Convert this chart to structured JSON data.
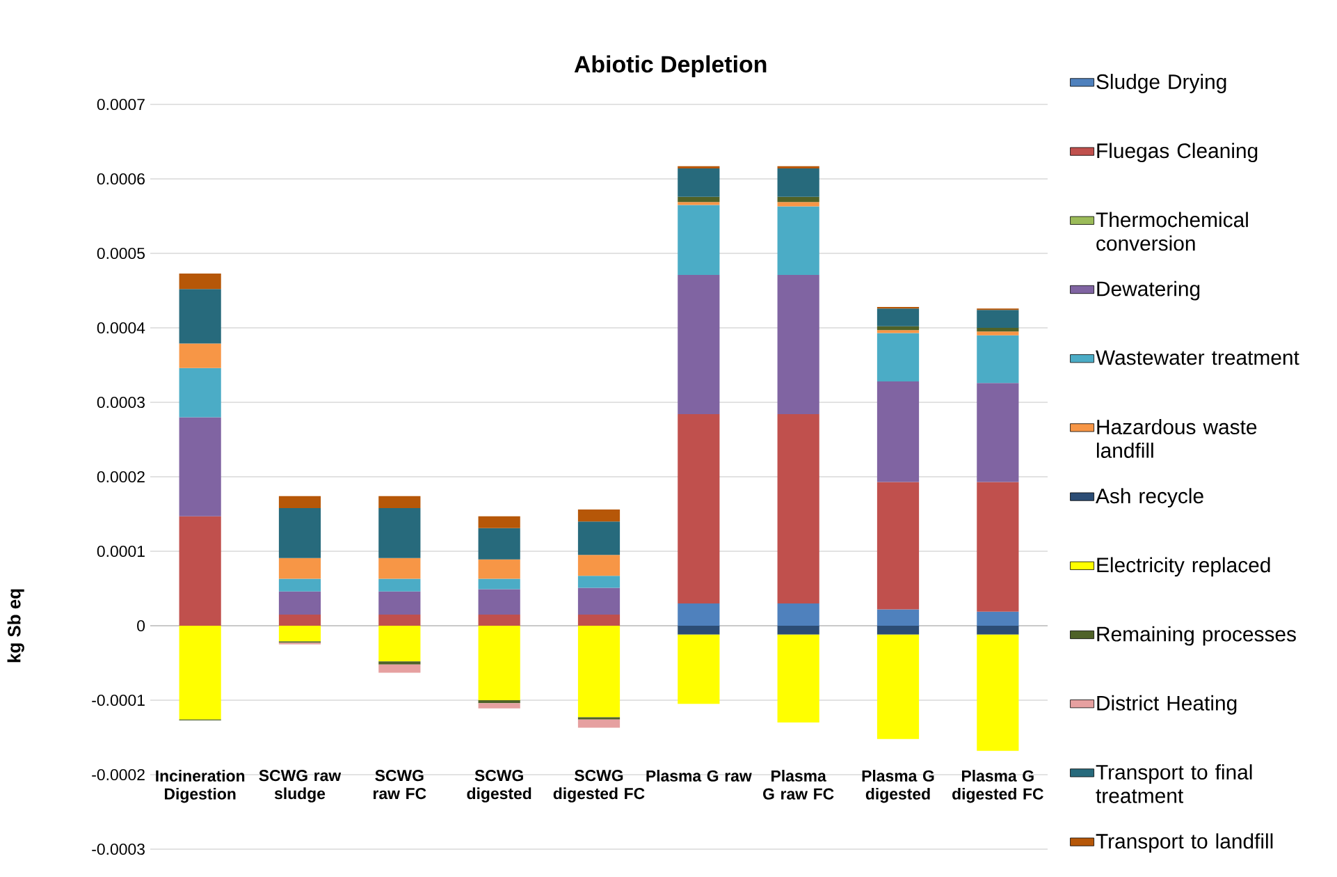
{
  "chart_data": {
    "type": "bar",
    "title": "Abiotic Depletion",
    "ylabel": "kg Sb eq",
    "stacked": true,
    "grid": "y",
    "legend": "right",
    "categories": [
      "Incineration Digestion",
      "SCWG raw sludge",
      "SCWG raw FC",
      "SCWG digested",
      "SCWG digested FC",
      "Plasma G raw",
      "Plasma G raw FC",
      "Plasma G digested",
      "Plasma G digested FC"
    ],
    "ylim": [
      -0.0003,
      0.0007
    ],
    "yticks": [
      -0.0003,
      -0.0002,
      -0.0001,
      0,
      0.0001,
      0.0002,
      0.0003,
      0.0004,
      0.0005,
      0.0006,
      0.0007
    ],
    "series": [
      {
        "name": "Sludge Drying",
        "color": "#4f81bd",
        "values": [
          0,
          0,
          0,
          0,
          0,
          3e-05,
          3e-05,
          2.2e-05,
          1.9e-05
        ]
      },
      {
        "name": "Fluegas Cleaning",
        "color": "#c0504d",
        "values": [
          0.000147,
          1.5e-05,
          1.5e-05,
          1.5e-05,
          1.5e-05,
          0.000254,
          0.000254,
          0.000171,
          0.000174
        ]
      },
      {
        "name": "Thermochemical conversion",
        "color": "#9bbb59",
        "values": [
          0,
          0,
          0,
          0,
          0,
          0,
          0,
          0,
          0
        ]
      },
      {
        "name": "Dewatering",
        "color": "#8064a2",
        "values": [
          0.000133,
          3.1e-05,
          3.1e-05,
          3.4e-05,
          3.6e-05,
          0.000187,
          0.000187,
          0.000135,
          0.000133
        ]
      },
      {
        "name": "Wastewater treatment",
        "color": "#4bacc6",
        "values": [
          6.6e-05,
          1.7e-05,
          1.7e-05,
          1.4e-05,
          1.6e-05,
          9.4e-05,
          9.2e-05,
          6.5e-05,
          6.4e-05
        ]
      },
      {
        "name": "Hazardous waste landfill",
        "color": "#f79646",
        "values": [
          3.3e-05,
          2.8e-05,
          2.8e-05,
          2.6e-05,
          2.8e-05,
          4e-06,
          6e-06,
          4e-06,
          5e-06
        ]
      },
      {
        "name": "Ash recycle",
        "color": "#2c4d75",
        "values": [
          0,
          0,
          0,
          0,
          0,
          -1.2e-05,
          -1.2e-05,
          -1.2e-05,
          -1.2e-05
        ]
      },
      {
        "name": "Electricity replaced",
        "color": "#ffff00",
        "values": [
          -0.000126,
          -2.1e-05,
          -4.8e-05,
          -0.0001,
          -0.000123,
          -9.3e-05,
          -0.000118,
          -0.00014,
          -0.000156
        ]
      },
      {
        "name": "Remaining processes",
        "color": "#4f6228",
        "values": [
          -1e-06,
          -2e-06,
          -4e-06,
          -4e-06,
          -3e-06,
          7e-06,
          7e-06,
          5e-06,
          5e-06
        ]
      },
      {
        "name": "District Heating",
        "color": "#e6a0a0",
        "values": [
          0,
          -2e-06,
          -1.1e-05,
          -7e-06,
          -1.1e-05,
          0,
          0,
          0,
          0
        ]
      },
      {
        "name": "Transport to final treatment",
        "color": "#276a7c",
        "values": [
          7.3e-05,
          6.7e-05,
          6.7e-05,
          4.2e-05,
          4.5e-05,
          3.8e-05,
          3.8e-05,
          2.4e-05,
          2.4e-05
        ]
      },
      {
        "name": "Transport to landfill",
        "color": "#b65708",
        "values": [
          2.1e-05,
          1.6e-05,
          1.6e-05,
          1.6e-05,
          1.6e-05,
          3e-06,
          3e-06,
          2e-06,
          2e-06
        ]
      }
    ]
  }
}
